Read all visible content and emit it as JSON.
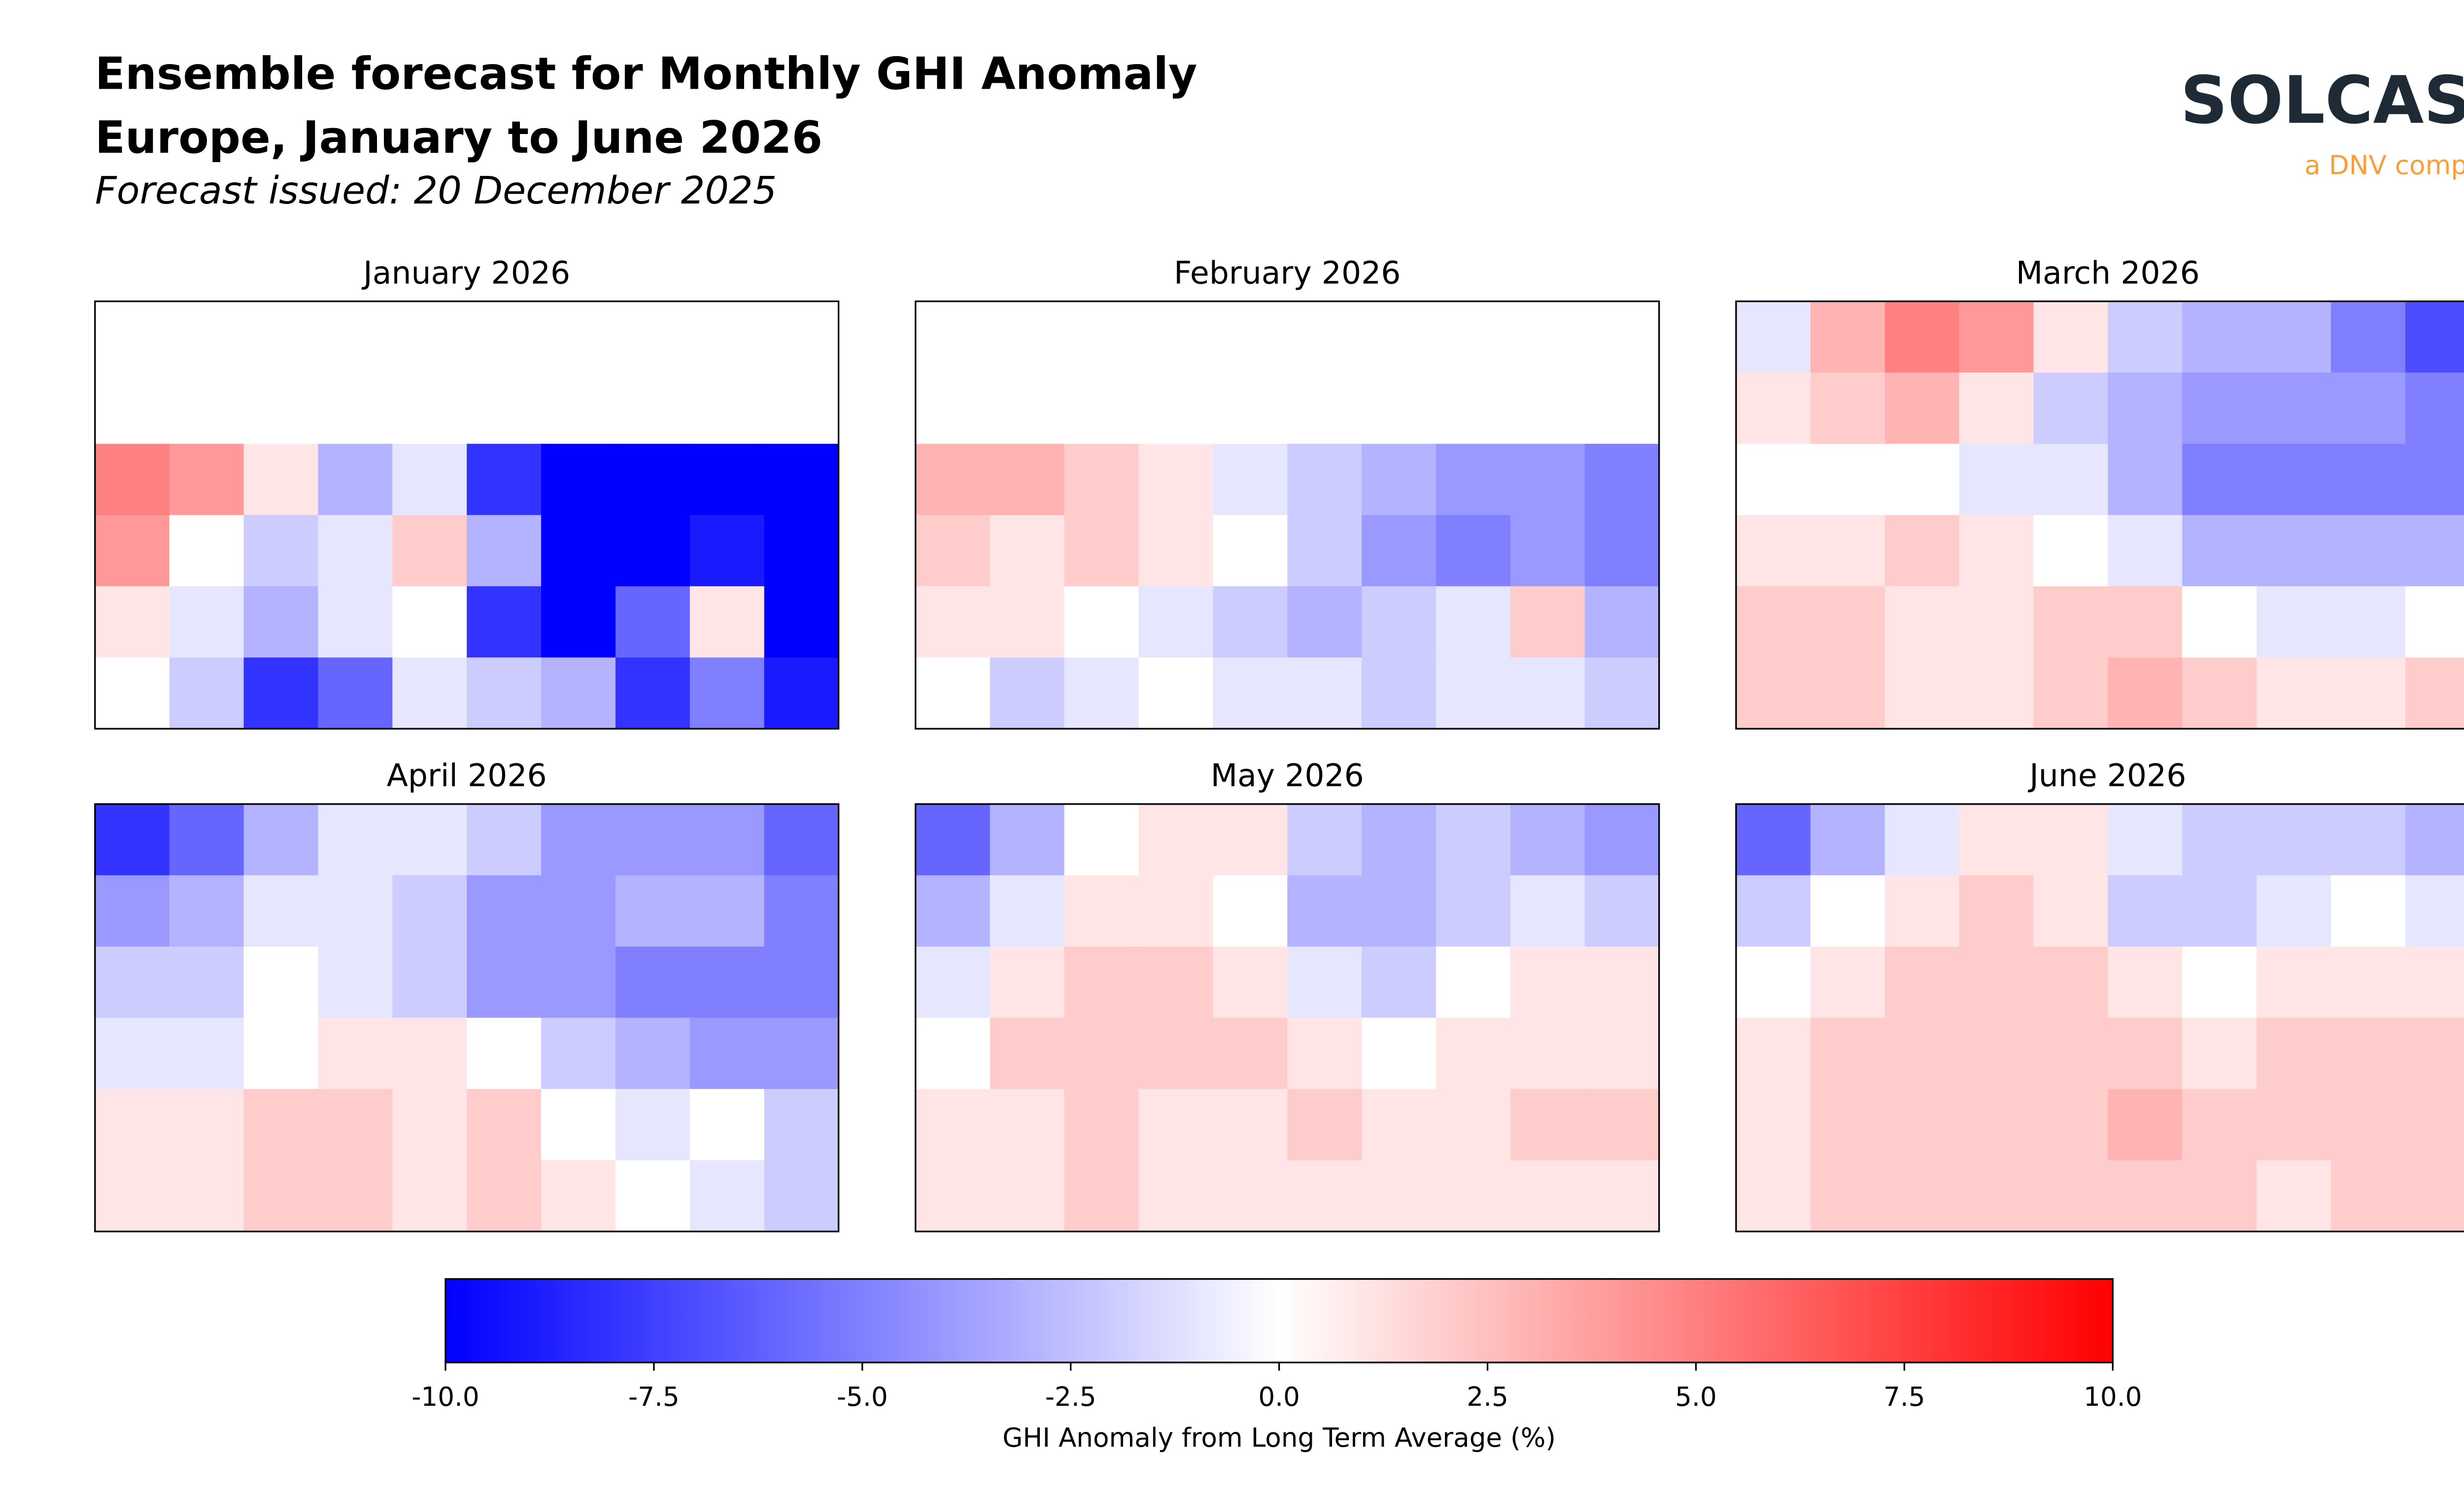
{
  "header": {
    "title_lines": [
      "Ensemble forecast for Monthly GHI Anomaly",
      "Europe, January to June 2026"
    ],
    "subtitle": "Forecast issued: 20 December 2025",
    "logo": "SOLCAST",
    "logo_tagline": "a DNV company"
  },
  "chart_data": [
    {
      "type": "heatmap",
      "title": "January 2026",
      "values": [
        [
          null,
          null,
          null,
          null,
          null,
          null,
          null,
          null,
          null,
          null
        ],
        [
          null,
          null,
          null,
          null,
          null,
          null,
          null,
          null,
          null,
          null
        ],
        [
          5,
          4,
          1,
          -3,
          -1,
          -8,
          -10,
          -10,
          -10,
          -10
        ],
        [
          4,
          0,
          -2,
          -1,
          2,
          -3,
          -10,
          -10,
          -9,
          -10
        ],
        [
          1,
          -1,
          -3,
          -1,
          0,
          -8,
          -10,
          -6,
          1,
          -10
        ],
        [
          0,
          -2,
          -8,
          -6,
          -1,
          -2,
          -3,
          -8,
          -5,
          -9
        ]
      ]
    },
    {
      "type": "heatmap",
      "title": "February 2026",
      "values": [
        [
          null,
          null,
          null,
          null,
          null,
          null,
          null,
          null,
          null,
          null
        ],
        [
          null,
          null,
          null,
          null,
          null,
          null,
          null,
          null,
          null,
          null
        ],
        [
          3,
          3,
          2,
          1,
          -1,
          -2,
          -3,
          -4,
          -4,
          -5
        ],
        [
          2,
          1,
          2,
          1,
          0,
          -2,
          -4,
          -5,
          -4,
          -5
        ],
        [
          1,
          1,
          0,
          -1,
          -2,
          -3,
          -2,
          -1,
          2,
          -3
        ],
        [
          0,
          -2,
          -1,
          0,
          -1,
          -1,
          -2,
          -1,
          -1,
          -2
        ]
      ]
    },
    {
      "type": "heatmap",
      "title": "March 2026",
      "values": [
        [
          -1,
          3,
          5,
          4,
          1,
          -2,
          -3,
          -3,
          -5,
          -7
        ],
        [
          1,
          2,
          3,
          1,
          -2,
          -3,
          -4,
          -4,
          -4,
          -5
        ],
        [
          0,
          0,
          0,
          -1,
          -1,
          -3,
          -5,
          -5,
          -5,
          -5
        ],
        [
          1,
          1,
          2,
          1,
          0,
          -1,
          -3,
          -3,
          -3,
          -3
        ],
        [
          2,
          2,
          1,
          1,
          2,
          2,
          0,
          -1,
          -1,
          0
        ],
        [
          2,
          2,
          1,
          1,
          2,
          3,
          2,
          1,
          1,
          2
        ]
      ]
    },
    {
      "type": "heatmap",
      "title": "April 2026",
      "values": [
        [
          -8,
          -6,
          -3,
          -1,
          -1,
          -2,
          -4,
          -4,
          -4,
          -6
        ],
        [
          -4,
          -3,
          -1,
          -1,
          -2,
          -4,
          -4,
          -3,
          -3,
          -5
        ],
        [
          -2,
          -2,
          0,
          -1,
          -2,
          -4,
          -4,
          -5,
          -5,
          -5
        ],
        [
          -1,
          -1,
          0,
          1,
          1,
          0,
          -2,
          -3,
          -4,
          -4
        ],
        [
          1,
          1,
          2,
          2,
          1,
          2,
          0,
          -1,
          0,
          -2
        ],
        [
          1,
          1,
          2,
          2,
          1,
          2,
          1,
          0,
          -1,
          -2
        ]
      ]
    },
    {
      "type": "heatmap",
      "title": "May 2026",
      "values": [
        [
          -6,
          -3,
          0,
          1,
          1,
          -2,
          -3,
          -2,
          -3,
          -4
        ],
        [
          -3,
          -1,
          1,
          1,
          0,
          -3,
          -3,
          -2,
          -1,
          -2
        ],
        [
          -1,
          1,
          2,
          2,
          1,
          -1,
          -2,
          0,
          1,
          1
        ],
        [
          0,
          2,
          2,
          2,
          2,
          1,
          0,
          1,
          1,
          1
        ],
        [
          1,
          1,
          2,
          1,
          1,
          2,
          1,
          1,
          2,
          2
        ],
        [
          1,
          1,
          2,
          1,
          1,
          1,
          1,
          1,
          1,
          1
        ]
      ]
    },
    {
      "type": "heatmap",
      "title": "June 2026",
      "values": [
        [
          -6,
          -3,
          -1,
          1,
          1,
          -1,
          -2,
          -2,
          -2,
          -3
        ],
        [
          -2,
          0,
          1,
          2,
          1,
          -2,
          -2,
          -1,
          0,
          -1
        ],
        [
          0,
          1,
          2,
          2,
          2,
          1,
          0,
          1,
          1,
          1
        ],
        [
          1,
          2,
          2,
          2,
          2,
          2,
          1,
          2,
          2,
          2
        ],
        [
          1,
          2,
          2,
          2,
          2,
          3,
          2,
          2,
          2,
          2
        ],
        [
          1,
          2,
          2,
          2,
          2,
          2,
          2,
          1,
          2,
          2
        ]
      ]
    }
  ],
  "colorbar": {
    "label": "GHI Anomaly from Long Term Average (%)",
    "lim": [
      -10,
      10
    ],
    "colors": [
      "#0000ff",
      "#ffffff",
      "#ff0000"
    ],
    "ticks": [
      {
        "value": -10,
        "label": "-10.0"
      },
      -7.5,
      {
        "value": -5,
        "label": "-5.0"
      },
      -2.5,
      {
        "value": 0,
        "label": "0.0"
      },
      2.5,
      {
        "value": 5,
        "label": "5.0"
      },
      7.5,
      {
        "value": 10,
        "label": "10.0"
      }
    ]
  }
}
